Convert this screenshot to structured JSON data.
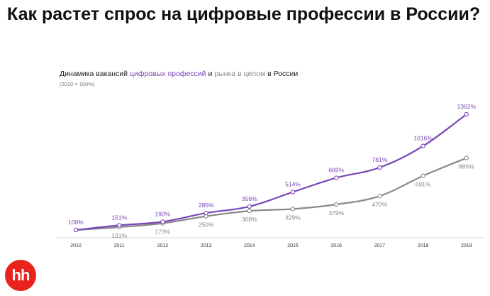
{
  "page": {
    "title": "Как растет спрос на цифровые профессии в России?",
    "subtitle": {
      "prefix": "Динамика вакансий ",
      "digital": "цифровых профессий",
      "middle": " и ",
      "market": "рынка в целом",
      "suffix": " в России"
    },
    "note": "(2010 = 100%)",
    "logo_text": "hh"
  },
  "colors": {
    "digital": "#7b46b9",
    "market": "#8a8a8a",
    "logo": "#e8231b"
  },
  "chart_data": {
    "type": "line",
    "x": [
      "2010",
      "2011",
      "2012",
      "2013",
      "2014",
      "2015",
      "2016",
      "2017",
      "2018",
      "2019"
    ],
    "ylim": [
      0,
      1400
    ],
    "grid": false,
    "series": [
      {
        "name": "цифровых профессий",
        "color": "#7b46b9",
        "values": [
          100,
          151,
          190,
          285,
          356,
          514,
          669,
          781,
          1016,
          1362
        ],
        "labels": [
          "100%",
          "151%",
          "190%",
          "285%",
          "356%",
          "514%",
          "669%",
          "781%",
          "1016%",
          "1362%"
        ]
      },
      {
        "name": "рынка в целом",
        "color": "#8a8a8a",
        "values": [
          100,
          131,
          173,
          250,
          308,
          329,
          379,
          470,
          691,
          885
        ],
        "labels": [
          "",
          "131%",
          "173%",
          "250%",
          "308%",
          "329%",
          "379%",
          "470%",
          "691%",
          "885%"
        ]
      }
    ]
  }
}
